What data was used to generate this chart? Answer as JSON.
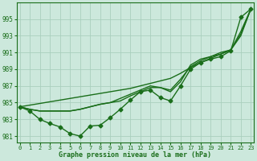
{
  "x": [
    0,
    1,
    2,
    3,
    4,
    5,
    6,
    7,
    8,
    9,
    10,
    11,
    12,
    13,
    14,
    15,
    16,
    17,
    18,
    19,
    20,
    21,
    22,
    23
  ],
  "line_main": [
    984.5,
    984.0,
    983.0,
    982.5,
    982.1,
    981.3,
    981.0,
    982.2,
    982.3,
    983.2,
    984.2,
    985.3,
    986.3,
    986.5,
    985.6,
    985.2,
    987.0,
    989.0,
    989.8,
    990.2,
    990.5,
    991.2,
    995.2,
    996.2
  ],
  "line_trend": [
    984.5,
    984.7,
    984.9,
    985.1,
    985.3,
    985.5,
    985.7,
    985.9,
    986.1,
    986.3,
    986.5,
    986.7,
    987.0,
    987.3,
    987.6,
    987.9,
    988.5,
    989.2,
    989.8,
    990.3,
    990.8,
    991.3,
    993.0,
    996.2
  ],
  "line_smooth1": [
    984.5,
    984.2,
    984.0,
    984.0,
    984.0,
    984.0,
    984.2,
    984.5,
    984.8,
    985.0,
    985.2,
    985.8,
    986.3,
    986.8,
    986.8,
    986.5,
    987.8,
    989.3,
    990.0,
    990.5,
    990.8,
    991.3,
    993.2,
    996.2
  ],
  "line_smooth2": [
    984.5,
    984.2,
    984.0,
    984.0,
    984.0,
    984.0,
    984.2,
    984.5,
    984.8,
    985.0,
    985.5,
    986.0,
    986.5,
    987.0,
    986.8,
    986.3,
    987.5,
    989.5,
    990.2,
    990.5,
    991.0,
    991.3,
    993.5,
    996.2
  ],
  "line_color": "#1a6e1a",
  "bg_color": "#cce8dc",
  "grid_color": "#aacfbe",
  "xlabel": "Graphe pression niveau de la mer (hPa)",
  "yticks": [
    981,
    983,
    985,
    987,
    989,
    991,
    993,
    995
  ],
  "ylim": [
    980.2,
    997.0
  ],
  "xlim": [
    -0.3,
    23.3
  ],
  "marker": "D",
  "marker_size": 2.5,
  "line_width": 1.0
}
